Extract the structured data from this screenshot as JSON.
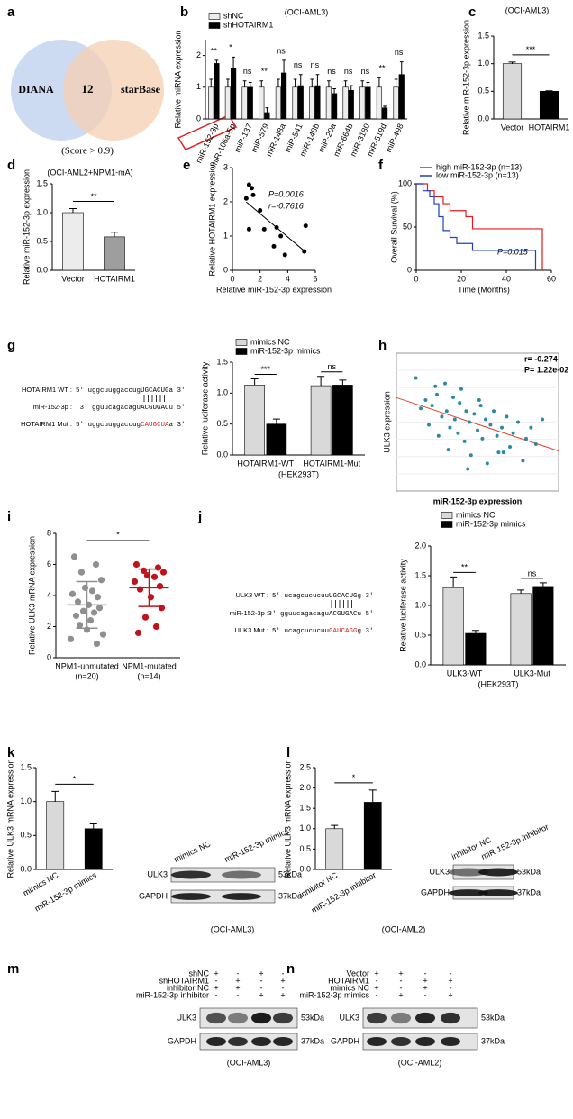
{
  "panel_labels": [
    "a",
    "b",
    "c",
    "d",
    "e",
    "f",
    "g",
    "h",
    "i",
    "j",
    "k",
    "l",
    "m",
    "n"
  ],
  "venn": {
    "left": "DIANA",
    "overlap": "12",
    "right": "starBase",
    "note": "(Score > 0.9)"
  },
  "seq_g": {
    "rows": [
      {
        "label": "HOTAIRM1 WT :",
        "text": "5' uggcuuggaccugUGCACUGa 3'"
      },
      {
        "label": "miR-152-3p :",
        "text": "3' gguucagacaguACGUGACu 5'"
      },
      {
        "label": "HOTAIRM1 Mut :",
        "text": "5' uggcuuggaccug",
        "mutation": "CAUGCUA",
        "tail": "a 3'"
      }
    ]
  },
  "seq_j": {
    "rows": [
      {
        "label": "ULK3 WT :",
        "text": "5' ucagcucucuuUGCACUGg 3'"
      },
      {
        "label": "miR-152-3p :",
        "text": "3' gguucagacaguACGUGACu 5'"
      },
      {
        "label": "ULK3 Mut :",
        "text": "5' ucagcucucuu",
        "mutation": "GAUCAGG",
        "tail": "g 3'"
      }
    ]
  },
  "blot_k": {
    "lanes": [
      "mimics NC",
      "miR-152-3p mimics"
    ],
    "bands": [
      {
        "name": "ULK3",
        "size": "53kDa"
      },
      {
        "name": "GAPDH",
        "size": "37kDa"
      }
    ],
    "cell": "(OCI-AML3)"
  },
  "blot_l": {
    "lanes": [
      "inhibitor NC",
      "miR-152-3p inhibitor"
    ],
    "bands": [
      {
        "name": "ULK3",
        "size": "53kDa"
      },
      {
        "name": "GAPDH",
        "size": "37kDa"
      }
    ],
    "cell": "(OCI-AML2)"
  },
  "blot_m": {
    "treatments": [
      {
        "name": "shNC",
        "signs": [
          "+",
          "-",
          "+",
          "-"
        ]
      },
      {
        "name": "shHOTAIRM1",
        "signs": [
          "-",
          "+",
          "-",
          "+"
        ]
      },
      {
        "name": "inhibitor NC",
        "signs": [
          "+",
          "+",
          "-",
          "-"
        ]
      },
      {
        "name": "miR-152-3p inhibitor",
        "signs": [
          "-",
          "-",
          "+",
          "+"
        ]
      }
    ],
    "bands": [
      {
        "name": "ULK3",
        "size": "53kDa"
      },
      {
        "name": "GAPDH",
        "size": "37kDa"
      }
    ],
    "cell": "(OCI-AML3)"
  },
  "blot_n": {
    "treatments": [
      {
        "name": "Vector",
        "signs": [
          "+",
          "+",
          "-",
          "-"
        ]
      },
      {
        "name": "HOTAIRM1",
        "signs": [
          "-",
          "-",
          "+",
          "+"
        ]
      },
      {
        "name": "mimics NC",
        "signs": [
          "+",
          "-",
          "+",
          "-"
        ]
      },
      {
        "name": "miR-152-3p mimics",
        "signs": [
          "-",
          "+",
          "-",
          "+"
        ]
      }
    ],
    "bands": [
      {
        "name": "ULK3",
        "size": "53kDa"
      },
      {
        "name": "GAPDH",
        "size": "37kDa"
      }
    ],
    "cell": "(OCI-AML2)"
  },
  "chart_data": [
    {
      "type": "bar",
      "title": "(OCI-AML3)",
      "categories": [
        "miR-152-3p",
        "miR-106a-5p",
        "miR-137",
        "miR-579",
        "miR-148a",
        "miR-541",
        "miR-148b",
        "miR-20a",
        "miR-664b",
        "miR-3180",
        "miR-519d",
        "miR-498"
      ],
      "series": [
        {
          "name": "shNC",
          "color": "#ededed",
          "values": [
            1,
            1,
            1,
            1,
            1,
            1,
            1,
            1,
            1,
            1,
            1,
            1
          ],
          "errors": [
            0.25,
            0.25,
            0.2,
            0.2,
            0.25,
            0.25,
            0.25,
            0.2,
            0.2,
            0.2,
            0.3,
            0.25
          ]
        },
        {
          "name": "shHOTAIRM1",
          "color": "#000000",
          "values": [
            1.75,
            1.6,
            1.0,
            0.2,
            1.45,
            1.05,
            1.05,
            0.8,
            0.9,
            1.0,
            0.35,
            1.4
          ],
          "errors": [
            0.1,
            0.35,
            0.15,
            0.15,
            0.4,
            0.35,
            0.35,
            0.15,
            0.15,
            0.15,
            0.05,
            0.4
          ]
        }
      ],
      "significance": [
        "**",
        "*",
        "ns",
        "**",
        "ns",
        "ns",
        "ns",
        "ns",
        "ns",
        "ns",
        "**",
        "ns"
      ],
      "ylabel": "Relative miRNA expression",
      "ylim": [
        0,
        2.5
      ],
      "yticks": [
        0,
        1,
        2
      ]
    },
    {
      "type": "bar",
      "title": "(OCI-AML3)",
      "categories": [
        "Vector",
        "HOTAIRM1"
      ],
      "values": [
        1.0,
        0.5
      ],
      "errors": [
        0.03,
        0.01
      ],
      "colors": [
        "#d9d9d9",
        "#000000"
      ],
      "significance": [
        "***"
      ],
      "ylabel": "Relative miR-152-3p expression",
      "ylim": [
        0,
        1.5
      ],
      "yticks": [
        {
          "value": 0,
          "label": "0.0"
        },
        0.5,
        {
          "value": 1,
          "label": "1.0"
        },
        1.5
      ]
    },
    {
      "type": "bar",
      "title": "(OCI-AML2+NPM1-mA)",
      "categories": [
        "Vector",
        "HOTAIRM1"
      ],
      "values": [
        1.0,
        0.58
      ],
      "errors": [
        0.07,
        0.08
      ],
      "colors": [
        "#ececec",
        "#9e9e9e"
      ],
      "significance": [
        "**"
      ],
      "ylabel": "Relative miR-152-3p expression",
      "ylim": [
        0,
        1.5
      ],
      "yticks": [
        {
          "value": 0,
          "label": "0.0"
        },
        0.5,
        {
          "value": 1,
          "label": "1.0"
        },
        1.5
      ]
    },
    {
      "type": "scatter",
      "x": [
        1.2,
        1.4,
        1.0,
        1.5,
        2.0,
        1.2,
        2.3,
        3.2,
        3.5,
        3.0,
        3.8,
        5.3,
        5.2
      ],
      "values": [
        2.5,
        2.4,
        2.1,
        2.2,
        1.75,
        1.2,
        1.2,
        1.25,
        1.0,
        0.7,
        0.45,
        1.3,
        0.55
      ],
      "color": "#000000",
      "fit_color": "#000000",
      "annotations": [
        "P=0.0016",
        "r=-0.7616"
      ],
      "xlabel": "Relative miR-152-3p expression",
      "ylabel": "Relative HOTAIRM1 expression",
      "xlim": [
        0,
        6
      ],
      "ylim": [
        0,
        3
      ],
      "xticks": [
        0,
        2,
        4,
        6
      ],
      "yticks": [
        0,
        1,
        2,
        3
      ]
    },
    {
      "type": "line",
      "step": true,
      "series": [
        {
          "name": "high miR-152-3p (n=13)",
          "color": "#e41a1c",
          "x": [
            0,
            5,
            8,
            12,
            15,
            22,
            25,
            55,
            56
          ],
          "values": [
            100,
            92,
            85,
            77,
            69,
            62,
            48,
            48,
            0
          ]
        },
        {
          "name": "low miR-152-3p (n=13)",
          "color": "#1f3fbf",
          "x": [
            0,
            3,
            6,
            8,
            10,
            12,
            15,
            18,
            25,
            53,
            53
          ],
          "values": [
            100,
            92,
            85,
            77,
            62,
            46,
            38,
            31,
            23,
            8,
            0
          ]
        }
      ],
      "annotations": [
        "P=0.015"
      ],
      "xlabel": "Time (Months)",
      "ylabel": "Overall Survival (%)",
      "xlim": [
        0,
        60
      ],
      "ylim": [
        0,
        100
      ],
      "xticks": [
        0,
        20,
        40,
        60
      ],
      "yticks": [
        0,
        50,
        100
      ]
    },
    {
      "type": "bar",
      "categories": [
        "HOTAIRM1-WT",
        "HOTAIRM1-Mut"
      ],
      "xnote": "(HEK293T)",
      "series": [
        {
          "name": "mimics NC",
          "color": "#d9d9d9",
          "values": [
            1.13,
            1.12
          ],
          "errors": [
            0.1,
            0.15
          ]
        },
        {
          "name": "miR-152-3p mimics",
          "color": "#000000",
          "values": [
            0.5,
            1.13
          ],
          "errors": [
            0.08,
            0.08
          ]
        }
      ],
      "significance": [
        "***",
        "ns"
      ],
      "ylabel": "Relative luciferase activity",
      "ylim": [
        0,
        1.5
      ],
      "yticks": [
        {
          "value": 0,
          "label": "0.0"
        },
        0.5,
        {
          "value": 1,
          "label": "1.0"
        },
        1.5
      ]
    },
    {
      "type": "scatter",
      "frame": true,
      "x": [
        1.2,
        1.5,
        1.8,
        2.0,
        2.2,
        2.5,
        2.6,
        2.8,
        3.0,
        3.1,
        3.3,
        3.5,
        3.6,
        3.8,
        3.9,
        4.0,
        4.2,
        4.3,
        4.5,
        4.6,
        4.8,
        5.0,
        5.1,
        5.3,
        5.5,
        5.6,
        5.8,
        6.0,
        6.2,
        6.3,
        6.5,
        6.8,
        7.0,
        7.2,
        7.5,
        7.8,
        8.0,
        8.3,
        8.6,
        9.0,
        3.2,
        4.4,
        5.2,
        2.4,
        6.6
      ],
      "values": [
        5.6,
        4.5,
        4.8,
        3.9,
        4.6,
        5.0,
        3.5,
        4.2,
        5.4,
        4.4,
        3.8,
        4.9,
        4.1,
        3.6,
        4.7,
        5.2,
        3.3,
        4.4,
        4.0,
        2.8,
        4.3,
        3.7,
        4.8,
        3.4,
        4.1,
        2.5,
        3.9,
        4.4,
        3.5,
        2.9,
        3.8,
        4.2,
        3.1,
        3.6,
        4.0,
        2.6,
        3.4,
        3.8,
        3.2,
        4.1,
        3.0,
        2.3,
        4.6,
        5.3,
        2.9
      ],
      "color": "#2b8aa0",
      "fit_color": "#e0402a",
      "annotations": [
        "r= -0.274",
        "P= 1.22e-02"
      ],
      "xlabel": "miR-152-3p expression",
      "ylabel": "ULK3 expression",
      "xlim": [
        0,
        10
      ],
      "ylim": [
        1.5,
        6.5
      ]
    },
    {
      "type": "strip",
      "categories": [
        "NPM1-unmutated",
        "NPM1-mutated"
      ],
      "sublabels": [
        "(n=20)",
        "(n=14)"
      ],
      "groups": [
        {
          "color": "#8f8f8f",
          "values": [
            6.5,
            6.0,
            5.5,
            5.0,
            4.5,
            4.3,
            4.1,
            3.9,
            3.6,
            3.4,
            3.2,
            3.0,
            2.9,
            2.7,
            2.4,
            2.1,
            1.8,
            1.5,
            1.2,
            0.9
          ],
          "mean": 3.4,
          "sd": 1.5
        },
        {
          "color": "#c0141c",
          "values": [
            6.0,
            5.8,
            5.6,
            5.5,
            5.3,
            5.2,
            4.9,
            4.6,
            4.4,
            3.9,
            3.2,
            2.6,
            2.0,
            1.6
          ],
          "mean": 4.5,
          "sd": 1.2
        }
      ],
      "significance": [
        "*"
      ],
      "ylabel": "Relative ULK3 mRNA expression",
      "ylim": [
        0,
        8
      ],
      "yticks": [
        0,
        2,
        4,
        6,
        8
      ]
    },
    {
      "type": "bar",
      "categories": [
        "ULK3-WT",
        "ULK3-Mut"
      ],
      "xnote": "(HEK293T)",
      "series": [
        {
          "name": "mimics NC",
          "color": "#d9d9d9",
          "values": [
            1.3,
            1.2
          ],
          "errors": [
            0.18,
            0.06
          ]
        },
        {
          "name": "miR-152-3p mimics",
          "color": "#000000",
          "values": [
            0.53,
            1.32
          ],
          "errors": [
            0.05,
            0.06
          ]
        }
      ],
      "significance": [
        "**",
        "ns"
      ],
      "ylabel": "Relative luciferase activity",
      "ylim": [
        0,
        2
      ],
      "yticks": [
        {
          "value": 0,
          "label": "0.0"
        },
        0.5,
        {
          "value": 1,
          "label": "1.0"
        },
        1.5,
        {
          "value": 2,
          "label": "2.0"
        }
      ]
    },
    {
      "type": "bar",
      "categories": [
        "mimics NC",
        "miR-152-3p mimics"
      ],
      "values": [
        1.0,
        0.6
      ],
      "errors": [
        0.15,
        0.07
      ],
      "colors": [
        "#d9d9d9",
        "#000000"
      ],
      "significance": [
        "*"
      ],
      "ylabel": "Relative ULK3 mRNA expression",
      "ylim": [
        0,
        1.5
      ],
      "yticks": [
        {
          "value": 0,
          "label": "0.0"
        },
        0.5,
        {
          "value": 1,
          "label": "1.0"
        },
        1.5
      ]
    },
    {
      "type": "bar",
      "categories": [
        "inhibitor NC",
        "miR-152-3p inhibitor"
      ],
      "values": [
        1.0,
        1.65
      ],
      "errors": [
        0.08,
        0.3
      ],
      "colors": [
        "#d9d9d9",
        "#000000"
      ],
      "significance": [
        "*"
      ],
      "ylabel": "Relative ULK3 mRNA expression",
      "ylim": [
        0,
        2.5
      ],
      "yticks": [
        {
          "value": 0,
          "label": "0.0"
        },
        0.5,
        {
          "value": 1,
          "label": "1.0"
        },
        1.5,
        {
          "value": 2,
          "label": "2.0"
        },
        2.5
      ]
    }
  ]
}
